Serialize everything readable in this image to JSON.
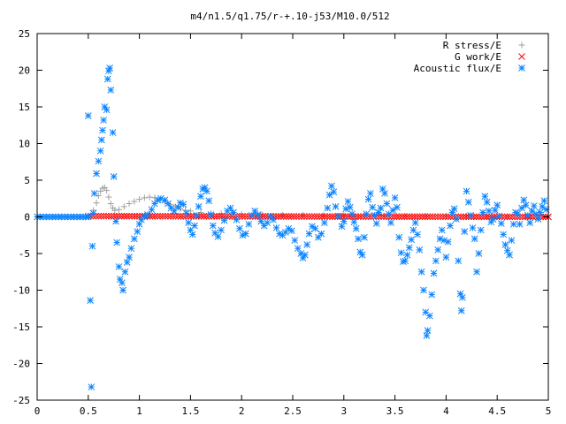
{
  "chart_data": {
    "type": "scatter",
    "title": "m4/n1.5/q1.75/r-+.10-j53/M10.0/512",
    "xlabel": "",
    "ylabel": "",
    "xlim": [
      0,
      5
    ],
    "ylim": [
      -25,
      25
    ],
    "grid": false,
    "legend_position": "top-right",
    "x_ticks": [
      "0",
      "0.5",
      "1",
      "1.5",
      "2",
      "2.5",
      "3",
      "3.5",
      "4",
      "4.5",
      "5"
    ],
    "y_ticks": [
      "25",
      "20",
      "15",
      "10",
      "5",
      "0",
      "-5",
      "-10",
      "-15",
      "-20",
      "-25"
    ],
    "series": [
      {
        "name": "R stress/E",
        "marker": "plus",
        "color": "#a0a0a0",
        "points": [
          [
            0.5,
            0.0
          ],
          [
            0.52,
            0.2
          ],
          [
            0.55,
            0.9
          ],
          [
            0.58,
            1.9
          ],
          [
            0.6,
            2.9
          ],
          [
            0.62,
            3.5
          ],
          [
            0.64,
            3.9
          ],
          [
            0.66,
            4.0
          ],
          [
            0.68,
            3.6
          ],
          [
            0.7,
            2.7
          ],
          [
            0.72,
            1.8
          ],
          [
            0.74,
            1.2
          ],
          [
            0.76,
            0.9
          ],
          [
            0.8,
            1.0
          ],
          [
            0.85,
            1.4
          ],
          [
            0.9,
            1.8
          ],
          [
            0.95,
            2.1
          ],
          [
            1.0,
            2.4
          ],
          [
            1.05,
            2.6
          ],
          [
            1.1,
            2.7
          ],
          [
            1.15,
            2.6
          ],
          [
            1.2,
            2.3
          ],
          [
            1.25,
            2.0
          ],
          [
            1.3,
            1.7
          ],
          [
            1.35,
            1.4
          ],
          [
            1.4,
            1.1
          ],
          [
            1.45,
            0.9
          ],
          [
            1.5,
            0.8
          ],
          [
            1.6,
            0.6
          ],
          [
            1.7,
            0.5
          ],
          [
            1.8,
            0.45
          ],
          [
            1.9,
            0.4
          ],
          [
            2.0,
            0.35
          ],
          [
            2.2,
            0.3
          ],
          [
            2.4,
            0.25
          ],
          [
            2.6,
            0.25
          ],
          [
            2.8,
            0.2
          ],
          [
            3.0,
            0.2
          ],
          [
            3.2,
            0.15
          ],
          [
            3.4,
            0.15
          ],
          [
            3.6,
            0.1
          ],
          [
            3.8,
            0.1
          ],
          [
            4.0,
            0.1
          ],
          [
            4.2,
            0.1
          ],
          [
            4.4,
            0.05
          ],
          [
            4.6,
            0.05
          ],
          [
            4.8,
            0.05
          ],
          [
            5.0,
            0.05
          ]
        ]
      },
      {
        "name": "G work/E",
        "marker": "cross",
        "color": "#ff0000",
        "x_range": [
          0.5,
          5.0
        ],
        "y_start": 0.1,
        "y_end": 0.0,
        "count": 180
      },
      {
        "name": "Acoustic flux/E",
        "marker": "star",
        "color": "#0a84ff",
        "points": [
          [
            0.0,
            0.0
          ],
          [
            0.03,
            0.0
          ],
          [
            0.06,
            0.0
          ],
          [
            0.09,
            0.0
          ],
          [
            0.12,
            0.0
          ],
          [
            0.15,
            0.0
          ],
          [
            0.18,
            0.0
          ],
          [
            0.21,
            0.0
          ],
          [
            0.24,
            0.0
          ],
          [
            0.27,
            0.0
          ],
          [
            0.3,
            0.0
          ],
          [
            0.33,
            0.0
          ],
          [
            0.36,
            0.0
          ],
          [
            0.39,
            0.0
          ],
          [
            0.42,
            0.0
          ],
          [
            0.45,
            0.0
          ],
          [
            0.48,
            0.0
          ],
          [
            0.5,
            13.8
          ],
          [
            0.5,
            0.0
          ],
          [
            0.52,
            -11.4
          ],
          [
            0.53,
            -23.2
          ],
          [
            0.54,
            -4.0
          ],
          [
            0.55,
            0.5
          ],
          [
            0.56,
            3.2
          ],
          [
            0.58,
            5.9
          ],
          [
            0.6,
            7.6
          ],
          [
            0.62,
            9.0
          ],
          [
            0.63,
            10.5
          ],
          [
            0.64,
            11.8
          ],
          [
            0.65,
            13.2
          ],
          [
            0.66,
            15.0
          ],
          [
            0.68,
            14.6
          ],
          [
            0.69,
            18.8
          ],
          [
            0.7,
            19.9
          ],
          [
            0.71,
            20.3
          ],
          [
            0.72,
            17.3
          ],
          [
            0.74,
            11.5
          ],
          [
            0.75,
            5.5
          ],
          [
            0.77,
            -0.6
          ],
          [
            0.78,
            -3.5
          ],
          [
            0.8,
            -6.8
          ],
          [
            0.81,
            -8.5
          ],
          [
            0.83,
            -9.0
          ],
          [
            0.84,
            -10.0
          ],
          [
            0.86,
            -7.5
          ],
          [
            0.88,
            -6.2
          ],
          [
            0.9,
            -5.5
          ],
          [
            0.92,
            -4.3
          ],
          [
            0.95,
            -3.0
          ],
          [
            0.98,
            -2.0
          ],
          [
            1.0,
            -1.0
          ],
          [
            1.02,
            -0.4
          ],
          [
            1.05,
            0.0
          ],
          [
            1.08,
            0.3
          ],
          [
            1.12,
            1.0
          ],
          [
            1.15,
            1.8
          ],
          [
            1.18,
            2.3
          ],
          [
            1.21,
            2.5
          ],
          [
            1.25,
            2.3
          ],
          [
            1.28,
            1.8
          ],
          [
            1.31,
            1.2
          ],
          [
            1.34,
            0.8
          ],
          [
            1.38,
            1.3
          ],
          [
            1.4,
            1.9
          ],
          [
            1.43,
            1.7
          ],
          [
            1.46,
            0.5
          ],
          [
            1.48,
            -0.8
          ],
          [
            1.5,
            -1.8
          ],
          [
            1.52,
            -2.4
          ],
          [
            1.54,
            -1.2
          ],
          [
            1.56,
            0.2
          ],
          [
            1.58,
            1.4
          ],
          [
            1.6,
            2.8
          ],
          [
            1.62,
            3.8
          ],
          [
            1.64,
            4.0
          ],
          [
            1.66,
            3.5
          ],
          [
            1.68,
            2.2
          ],
          [
            1.7,
            0.3
          ],
          [
            1.72,
            -1.2
          ],
          [
            1.74,
            -2.2
          ],
          [
            1.77,
            -2.7
          ],
          [
            1.8,
            -1.8
          ],
          [
            1.83,
            -0.5
          ],
          [
            1.86,
            0.8
          ],
          [
            1.89,
            1.2
          ],
          [
            1.92,
            0.6
          ],
          [
            1.95,
            -0.4
          ],
          [
            1.98,
            -1.6
          ],
          [
            2.01,
            -2.5
          ],
          [
            2.04,
            -2.3
          ],
          [
            2.07,
            -1.0
          ],
          [
            2.1,
            0.2
          ],
          [
            2.13,
            0.8
          ],
          [
            2.16,
            0.3
          ],
          [
            2.19,
            -0.6
          ],
          [
            2.22,
            -1.2
          ],
          [
            2.25,
            -0.8
          ],
          [
            2.28,
            0.1
          ],
          [
            2.31,
            -0.4
          ],
          [
            2.34,
            -1.5
          ],
          [
            2.37,
            -2.3
          ],
          [
            2.4,
            -2.5
          ],
          [
            2.43,
            -2.1
          ],
          [
            2.46,
            -1.6
          ],
          [
            2.49,
            -1.9
          ],
          [
            2.52,
            -3.2
          ],
          [
            2.55,
            -4.3
          ],
          [
            2.58,
            -5.0
          ],
          [
            2.6,
            -5.6
          ],
          [
            2.62,
            -5.2
          ],
          [
            2.64,
            -3.8
          ],
          [
            2.66,
            -2.3
          ],
          [
            2.69,
            -1.3
          ],
          [
            2.72,
            -1.6
          ],
          [
            2.75,
            -2.8
          ],
          [
            2.78,
            -2.3
          ],
          [
            2.81,
            -0.8
          ],
          [
            2.84,
            1.2
          ],
          [
            2.86,
            3.0
          ],
          [
            2.88,
            4.2
          ],
          [
            2.9,
            3.4
          ],
          [
            2.92,
            1.4
          ],
          [
            2.95,
            0.1
          ],
          [
            2.98,
            -1.3
          ],
          [
            3.0,
            -0.6
          ],
          [
            3.02,
            1.1
          ],
          [
            3.04,
            2.1
          ],
          [
            3.06,
            1.3
          ],
          [
            3.08,
            0.4
          ],
          [
            3.1,
            -0.7
          ],
          [
            3.12,
            -1.6
          ],
          [
            3.14,
            -3.0
          ],
          [
            3.16,
            -4.8
          ],
          [
            3.18,
            -5.2
          ],
          [
            3.2,
            -2.8
          ],
          [
            3.22,
            0.4
          ],
          [
            3.24,
            2.4
          ],
          [
            3.26,
            3.2
          ],
          [
            3.28,
            1.3
          ],
          [
            3.3,
            0.2
          ],
          [
            3.32,
            -0.9
          ],
          [
            3.34,
            0.6
          ],
          [
            3.36,
            1.2
          ],
          [
            3.38,
            3.8
          ],
          [
            3.4,
            3.2
          ],
          [
            3.42,
            1.8
          ],
          [
            3.44,
            0.4
          ],
          [
            3.46,
            -0.8
          ],
          [
            3.48,
            0.9
          ],
          [
            3.5,
            2.6
          ],
          [
            3.52,
            1.3
          ],
          [
            3.54,
            -2.8
          ],
          [
            3.56,
            -4.9
          ],
          [
            3.58,
            -6.1
          ],
          [
            3.6,
            -6.0
          ],
          [
            3.62,
            -5.2
          ],
          [
            3.64,
            -4.2
          ],
          [
            3.66,
            -3.1
          ],
          [
            3.68,
            -1.8
          ],
          [
            3.7,
            -0.8
          ],
          [
            3.72,
            -2.4
          ],
          [
            3.74,
            -4.5
          ],
          [
            3.76,
            -7.5
          ],
          [
            3.78,
            -10.0
          ],
          [
            3.8,
            -13.0
          ],
          [
            3.81,
            -16.2
          ],
          [
            3.82,
            -15.5
          ],
          [
            3.84,
            -13.5
          ],
          [
            3.86,
            -10.6
          ],
          [
            3.88,
            -7.7
          ],
          [
            3.9,
            -6.0
          ],
          [
            3.92,
            -4.5
          ],
          [
            3.94,
            -3.0
          ],
          [
            3.96,
            -1.8
          ],
          [
            3.98,
            -3.2
          ],
          [
            4.0,
            -5.5
          ],
          [
            4.02,
            -3.4
          ],
          [
            4.04,
            -1.2
          ],
          [
            4.06,
            0.6
          ],
          [
            4.08,
            1.1
          ],
          [
            4.1,
            -0.3
          ],
          [
            4.12,
            -6.0
          ],
          [
            4.14,
            -10.5
          ],
          [
            4.15,
            -12.8
          ],
          [
            4.16,
            -11.0
          ],
          [
            4.18,
            -2.0
          ],
          [
            4.2,
            3.5
          ],
          [
            4.22,
            2.0
          ],
          [
            4.24,
            0.2
          ],
          [
            4.26,
            -1.5
          ],
          [
            4.28,
            -3.0
          ],
          [
            4.3,
            -7.5
          ],
          [
            4.32,
            -5.0
          ],
          [
            4.34,
            -1.8
          ],
          [
            4.36,
            0.6
          ],
          [
            4.38,
            2.8
          ],
          [
            4.4,
            2.0
          ],
          [
            4.42,
            0.8
          ],
          [
            4.44,
            -0.7
          ],
          [
            4.46,
            -0.3
          ],
          [
            4.48,
            0.9
          ],
          [
            4.5,
            1.6
          ],
          [
            4.52,
            0.1
          ],
          [
            4.54,
            -0.9
          ],
          [
            4.56,
            -2.4
          ],
          [
            4.58,
            -3.8
          ],
          [
            4.6,
            -4.6
          ],
          [
            4.62,
            -5.2
          ],
          [
            4.64,
            -3.2
          ],
          [
            4.66,
            -1.0
          ],
          [
            4.68,
            0.6
          ],
          [
            4.7,
            0.4
          ],
          [
            4.72,
            -1.0
          ],
          [
            4.74,
            1.2
          ],
          [
            4.76,
            2.3
          ],
          [
            4.78,
            1.6
          ],
          [
            4.8,
            0.2
          ],
          [
            4.82,
            -0.8
          ],
          [
            4.84,
            0.8
          ],
          [
            4.86,
            1.5
          ],
          [
            4.88,
            0.4
          ],
          [
            4.9,
            -0.3
          ],
          [
            4.92,
            0.6
          ],
          [
            4.94,
            1.4
          ],
          [
            4.96,
            2.2
          ],
          [
            4.98,
            1.0
          ]
        ]
      }
    ]
  }
}
